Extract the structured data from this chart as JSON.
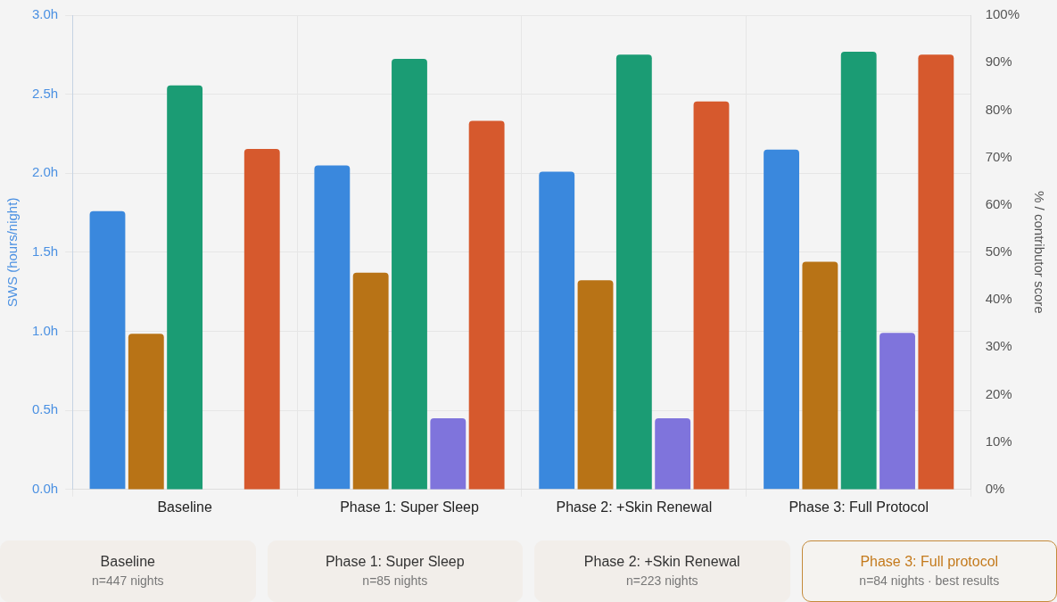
{
  "chart_data": {
    "type": "bar",
    "categories": [
      "Baseline",
      "Phase 1: Super Sleep",
      "Phase 2: +Skin Renewal",
      "Phase 3: Full Protocol"
    ],
    "series": [
      {
        "color": "#3a88dd",
        "values": [
          1.76,
          2.05,
          2.01,
          2.15
        ]
      },
      {
        "color": "#b87316",
        "values": [
          32.8,
          45.7,
          44.1,
          48.0
        ],
        "axis": "y2"
      },
      {
        "color": "#1b9c74",
        "values": [
          85.2,
          90.8,
          91.7,
          92.3
        ],
        "axis": "y2"
      },
      {
        "color": "#7f74dc",
        "values": [
          null,
          15.0,
          15.0,
          33.0
        ],
        "axis": "y2"
      },
      {
        "color": "#d6592d",
        "values": [
          71.8,
          77.7,
          81.8,
          91.7
        ],
        "axis": "y2"
      }
    ],
    "ylabel": "SWS (hours/night)",
    "y2label": "% / contributor score",
    "ylim": [
      0,
      3
    ],
    "yticks": [
      {
        "value": 0,
        "label": "0.0h"
      },
      {
        "value": 0.5,
        "label": "0.5h"
      },
      {
        "value": 1,
        "label": "1.0h"
      },
      {
        "value": 1.5,
        "label": "1.5h"
      },
      {
        "value": 2,
        "label": "2.0h"
      },
      {
        "value": 2.5,
        "label": "2.5h"
      },
      {
        "value": 3,
        "label": "3.0h"
      }
    ],
    "y2lim": [
      0,
      100
    ],
    "y2ticks": [
      {
        "value": 0,
        "label": "0%"
      },
      {
        "value": 10,
        "label": "10%"
      },
      {
        "value": 20,
        "label": "20%"
      },
      {
        "value": 30,
        "label": "30%"
      },
      {
        "value": 40,
        "label": "40%"
      },
      {
        "value": 50,
        "label": "50%"
      },
      {
        "value": 60,
        "label": "60%"
      },
      {
        "value": 70,
        "label": "70%"
      },
      {
        "value": 80,
        "label": "80%"
      },
      {
        "value": 90,
        "label": "90%"
      },
      {
        "value": 100,
        "label": "100%"
      }
    ],
    "grid": true,
    "legend": false,
    "annotations": [
      "Baseline\nn=447 nights",
      "Phase 1: Super Sleep\nn=85 nights",
      "Phase 2: +Skin Renewal\nn=223 nights",
      "Phase 3: Full protocol\nn=84 nights · best results"
    ]
  }
}
